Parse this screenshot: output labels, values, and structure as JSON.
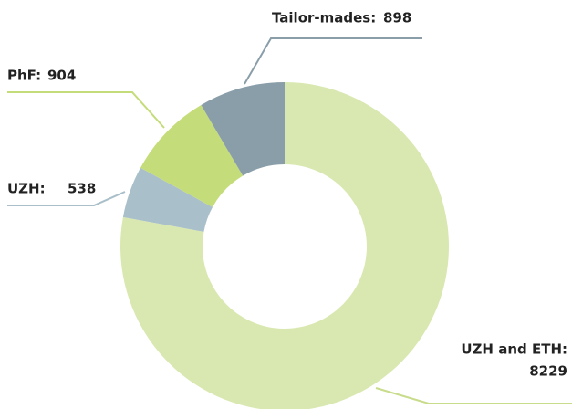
{
  "chart_data": {
    "type": "donut",
    "categories": [
      "UZH and ETH:",
      "UZH:",
      "PhF:",
      "Tailor-mades:"
    ],
    "values": [
      8229,
      538,
      904,
      898
    ],
    "colors": [
      "#d9e8b0",
      "#a9bfc9",
      "#c5dc7a",
      "#8a9ea9"
    ],
    "start_angle": "top",
    "direction": "clockwise"
  }
}
